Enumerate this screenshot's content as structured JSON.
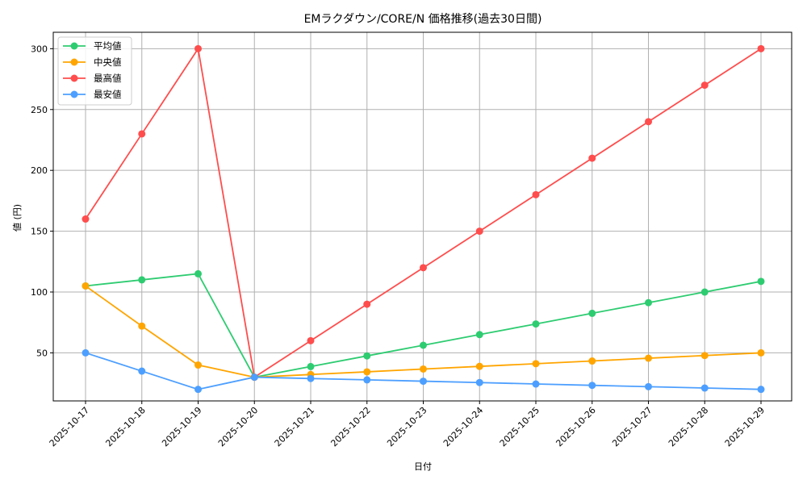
{
  "chart_data": {
    "type": "line",
    "title": "EMラクダウン/CORE/N 価格推移(過去30日間)",
    "xlabel": "日付",
    "ylabel": "値 (円)",
    "x": [
      "2025-10-17",
      "2025-10-18",
      "2025-10-19",
      "2025-10-20",
      "2025-10-21",
      "2025-10-22",
      "2025-10-23",
      "2025-10-24",
      "2025-10-25",
      "2025-10-26",
      "2025-10-27",
      "2025-10-28",
      "2025-10-29"
    ],
    "yticks": [
      50,
      100,
      150,
      200,
      250,
      300
    ],
    "ylim": [
      10.5,
      313.5
    ],
    "grid": true,
    "legend_position": "upper left",
    "series": [
      {
        "name": "平均値",
        "color": "#2ecc71",
        "values": [
          105,
          110,
          115,
          30,
          38.75,
          47.5,
          56.25,
          65,
          73.75,
          82.5,
          91.25,
          100,
          108.75
        ]
      },
      {
        "name": "中央値",
        "color": "#ffa500",
        "values": [
          105,
          72,
          40,
          30,
          32.2,
          34.4,
          36.7,
          38.9,
          41.1,
          43.3,
          45.6,
          47.8,
          50
        ]
      },
      {
        "name": "最高値",
        "color": "#ff4d4d",
        "values": [
          160,
          230,
          300,
          30,
          60,
          90,
          120,
          150,
          180,
          210,
          240,
          270,
          300
        ]
      },
      {
        "name": "最安値",
        "color": "#4d9fff",
        "values": [
          50,
          35,
          20,
          30,
          28.9,
          27.8,
          26.7,
          25.6,
          24.4,
          23.3,
          22.2,
          21.1,
          20
        ]
      }
    ]
  }
}
